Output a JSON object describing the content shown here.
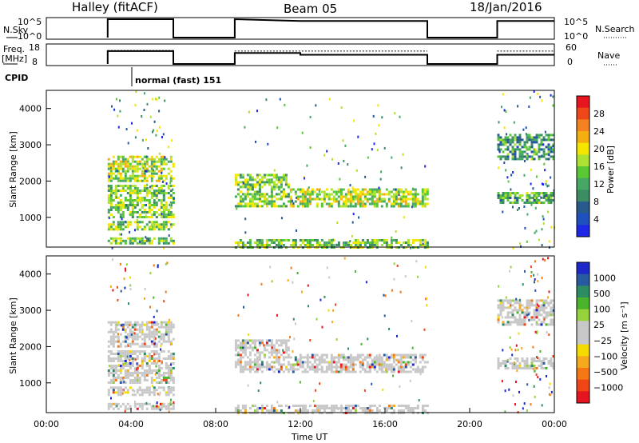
{
  "header": {
    "station": "Halley (fitACF)",
    "beam": "Beam 05",
    "date": "18/Jan/2016"
  },
  "strips": {
    "nsky_label": "N.Sky",
    "nsky_ticks": [
      "10^5",
      "10^0"
    ],
    "nsearch_label": "N.Search",
    "freq_label": "Freq.",
    "freq_unit": "[MHz]",
    "freq_ticks": [
      "18",
      "8"
    ],
    "nave_ticks": [
      "60",
      "0"
    ],
    "nave_label": "Nave",
    "cpid_label": "CPID",
    "cpid_text": "normal (fast) 151"
  },
  "x_axis": {
    "label": "Time UT",
    "ticks": [
      "00:00",
      "04:00",
      "08:00",
      "12:00",
      "16:00",
      "20:00",
      "00:00"
    ]
  },
  "power_colorbar": {
    "title": "Power [dB]",
    "ticks": [
      "28",
      "24",
      "20",
      "16",
      "12",
      "8",
      "4"
    ],
    "colors": [
      "#e8141e",
      "#ee4818",
      "#f58220",
      "#f5ae10",
      "#f5e600",
      "#aee232",
      "#5ac832",
      "#46a864",
      "#3c8c64",
      "#285a8c",
      "#1e50be",
      "#1e28e6"
    ]
  },
  "velocity_colorbar": {
    "title": "Velocity [m s⁻¹]",
    "ticks": [
      "1000",
      "500",
      "100",
      "25",
      "−25",
      "−100",
      "−500",
      "−1000"
    ],
    "colors": [
      "#1e28c8",
      "#285aa0",
      "#2d8c64",
      "#4bb42d",
      "#96d23c",
      "#c8c8c8",
      "#c8c8c8",
      "#f5dc00",
      "#f5aa1e",
      "#f57814",
      "#f04616",
      "#e6141e"
    ]
  },
  "chart_data": [
    {
      "type": "heatmap",
      "title": "Power [dB]",
      "xlabel": "",
      "ylabel": "Slant Range [km]",
      "xlim": [
        0,
        24
      ],
      "ylim": [
        180,
        4500
      ],
      "yticks": [
        1000,
        2000,
        3000,
        4000
      ],
      "color_range": [
        0,
        30
      ],
      "data_windows_ut_hours": [
        [
          2.9,
          6.0
        ],
        [
          8.9,
          18.0
        ],
        [
          21.3,
          24.0
        ]
      ],
      "echo_bands": [
        {
          "t0": 2.9,
          "t1": 6.0,
          "r0": 300,
          "r1": 450,
          "value": 14
        },
        {
          "t0": 2.9,
          "t1": 6.0,
          "r0": 700,
          "r1": 900,
          "value": 14
        },
        {
          "t0": 2.9,
          "t1": 6.0,
          "r0": 1000,
          "r1": 1900,
          "value": 14
        },
        {
          "t0": 2.9,
          "t1": 6.0,
          "r0": 2000,
          "r1": 2700,
          "value": 16
        },
        {
          "t0": 8.9,
          "t1": 11.5,
          "r0": 1300,
          "r1": 2200,
          "value": 14
        },
        {
          "t0": 11.5,
          "t1": 18.0,
          "r0": 1300,
          "r1": 1800,
          "value": 16
        },
        {
          "t0": 8.9,
          "t1": 18.0,
          "r0": 200,
          "r1": 400,
          "value": 14
        },
        {
          "t0": 21.3,
          "t1": 24.0,
          "r0": 1400,
          "r1": 1700,
          "value": 12
        },
        {
          "t0": 21.3,
          "t1": 24.0,
          "r0": 2600,
          "r1": 3300,
          "value": 10
        }
      ]
    },
    {
      "type": "heatmap",
      "title": "Velocity [m s⁻¹]",
      "xlabel": "Time UT",
      "ylabel": "Slant Range [km]",
      "xlim": [
        0,
        24
      ],
      "ylim": [
        180,
        4500
      ],
      "yticks": [
        1000,
        2000,
        3000,
        4000
      ],
      "color_range": [
        -1000,
        1000
      ],
      "data_windows_ut_hours": [
        [
          2.9,
          6.0
        ],
        [
          8.9,
          18.0
        ],
        [
          21.3,
          24.0
        ]
      ],
      "echo_bands": [
        {
          "t0": 2.9,
          "t1": 6.0,
          "r0": 300,
          "r1": 450,
          "value": 0
        },
        {
          "t0": 2.9,
          "t1": 6.0,
          "r0": 700,
          "r1": 900,
          "value": 0
        },
        {
          "t0": 2.9,
          "t1": 6.0,
          "r0": 1000,
          "r1": 1900,
          "value": 0
        },
        {
          "t0": 2.9,
          "t1": 6.0,
          "r0": 2000,
          "r1": 2700,
          "value": 0
        },
        {
          "t0": 8.9,
          "t1": 11.5,
          "r0": 1300,
          "r1": 2200,
          "value": 0
        },
        {
          "t0": 11.5,
          "t1": 18.0,
          "r0": 1300,
          "r1": 1800,
          "value": 0
        },
        {
          "t0": 8.9,
          "t1": 18.0,
          "r0": 200,
          "r1": 400,
          "value": 0
        },
        {
          "t0": 21.3,
          "t1": 24.0,
          "r0": 1400,
          "r1": 1700,
          "value": 0
        },
        {
          "t0": 21.3,
          "t1": 24.0,
          "r0": 2600,
          "r1": 3300,
          "value": 0
        }
      ]
    },
    {
      "type": "line",
      "title": "N.Sky",
      "xlim": [
        0,
        24
      ],
      "series": [
        {
          "name": "N.Sky",
          "x": [
            2.9,
            2.9,
            6.0,
            6.0,
            8.9,
            8.9,
            12.0,
            18.0,
            18.0,
            21.3,
            21.3,
            24.0
          ],
          "y": [
            0,
            1,
            1,
            0,
            0,
            1,
            0.9,
            0.9,
            0,
            0,
            0.9,
            0.9
          ]
        }
      ]
    },
    {
      "type": "line",
      "title": "Freq. [MHz]",
      "xlim": [
        0,
        24
      ],
      "ylim": [
        8,
        18
      ],
      "series": [
        {
          "name": "Freq.",
          "x": [
            2.9,
            2.9,
            6.0,
            6.0,
            8.9,
            8.9,
            12.0,
            12.0,
            18.0,
            18.0,
            21.3,
            21.3,
            24.0
          ],
          "y": [
            8,
            15,
            15,
            8,
            8,
            14,
            14,
            13,
            13,
            8,
            8,
            13,
            13
          ]
        },
        {
          "name": "Nave",
          "x": [
            2.9,
            6.0,
            8.9,
            18.0,
            21.3,
            24.0
          ],
          "y": [
            44,
            44,
            42,
            42,
            42,
            42
          ]
        }
      ]
    }
  ]
}
